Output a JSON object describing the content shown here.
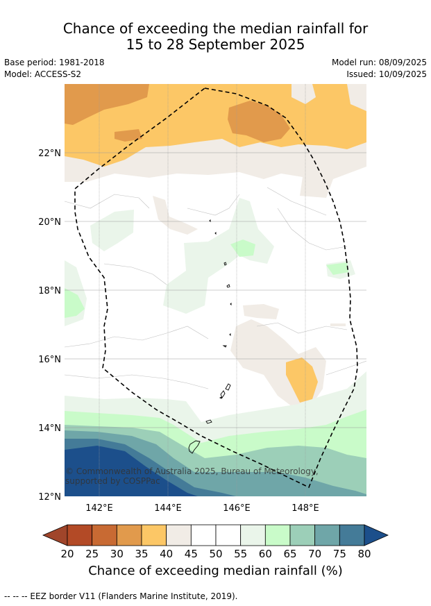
{
  "title": {
    "line1": "Chance of exceeding the median rainfall for",
    "line2": "15 to 28 September 2025"
  },
  "meta": {
    "base_period": "Base period: 1981-2018",
    "model": "Model: ACCESS-S2",
    "model_run": "Model run: 08/09/2025",
    "issued": "Issued: 10/09/2025"
  },
  "map": {
    "lat_labels": [
      "22°N",
      "20°N",
      "18°N",
      "16°N",
      "14°N",
      "12°N"
    ],
    "lat_values": [
      22,
      20,
      18,
      16,
      14,
      12
    ],
    "lon_labels": [
      "142°E",
      "144°E",
      "146°E",
      "148°E"
    ],
    "lon_values": [
      142,
      144,
      146,
      148
    ],
    "copyright": "© Commonwealth of Australia 2025, Bureau of Meteorology, supported by COSPPac"
  },
  "colorbar": {
    "ticks": [
      "20",
      "25",
      "30",
      "35",
      "40",
      "45",
      "50",
      "55",
      "60",
      "65",
      "70",
      "75",
      "80"
    ],
    "colors": [
      "#a0452a",
      "#b34a26",
      "#c86a33",
      "#e19a4c",
      "#fcc766",
      "#f1ece6",
      "#ffffff",
      "#ffffff",
      "#eaf5ea",
      "#c9fbc9",
      "#9ccfb8",
      "#6fa6a8",
      "#447b98",
      "#1c4f8b"
    ],
    "title": "Chance of exceeding median rainfall (%)"
  },
  "footer": "-- -- -- EEZ border V11 (Flanders Marine Institute, 2019)."
}
